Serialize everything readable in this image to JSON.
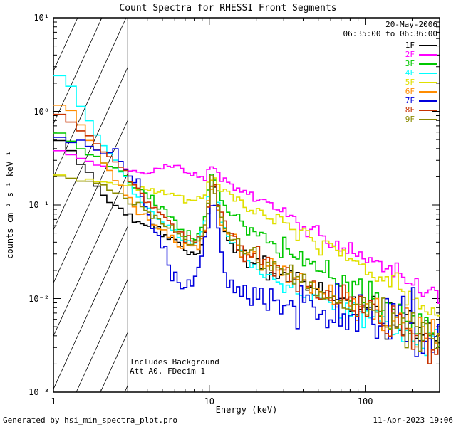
{
  "title": "Count Spectra for RHESSI Front Segments",
  "annotations": {
    "date": "20-May-2006",
    "time_range": "06:35:00 to 06:36:00",
    "note_line1": "Includes Background",
    "note_line2": "Att A0, FDecim 1"
  },
  "footer": {
    "generated_by": "Generated by hsi_min_spectra_plot.pro",
    "timestamp": "11-Apr-2023 19:06"
  },
  "chart_data": {
    "type": "line",
    "title": "Count Spectra for RHESSI Front Segments",
    "xlabel": "Energy (keV)",
    "ylabel": "counts cm⁻² s⁻¹ keV⁻¹",
    "xscale": "log",
    "yscale": "log",
    "xlim": [
      1,
      300
    ],
    "ylim": [
      0.001,
      10
    ],
    "x_ticks": [
      1,
      10,
      100
    ],
    "x_tick_labels": [
      "1",
      "10",
      "100"
    ],
    "y_ticks": [
      0.001,
      0.01,
      0.1,
      1,
      10
    ],
    "y_tick_labels": [
      "10⁻³",
      "10⁻²",
      "10⁻¹",
      "10⁰",
      "10¹"
    ],
    "grid": false,
    "legend_position": "upper right",
    "hatched_region": {
      "xmin": 1,
      "xmax": 3
    },
    "series": [
      {
        "name": "1F",
        "color": "#000000",
        "noise": 1.2,
        "points": [
          [
            1.05,
            0.48
          ],
          [
            1.25,
            0.44
          ],
          [
            1.45,
            0.3
          ],
          [
            1.7,
            0.22
          ],
          [
            2.0,
            0.13
          ],
          [
            2.4,
            0.1
          ],
          [
            2.8,
            0.085
          ],
          [
            3.3,
            0.07
          ],
          [
            4.0,
            0.06
          ],
          [
            5.0,
            0.05
          ],
          [
            6.0,
            0.04
          ],
          [
            7.0,
            0.032
          ],
          [
            8.5,
            0.03
          ],
          [
            9.5,
            0.05
          ],
          [
            10.5,
            0.2
          ],
          [
            11.5,
            0.1
          ],
          [
            13,
            0.045
          ],
          [
            16,
            0.028
          ],
          [
            20,
            0.024
          ],
          [
            30,
            0.017
          ],
          [
            50,
            0.012
          ],
          [
            70,
            0.0095
          ],
          [
            100,
            0.008
          ],
          [
            150,
            0.006
          ],
          [
            200,
            0.005
          ],
          [
            300,
            0.0038
          ]
        ]
      },
      {
        "name": "2F",
        "color": "#FF00FF",
        "noise": 0.7,
        "points": [
          [
            1.05,
            0.4
          ],
          [
            1.4,
            0.33
          ],
          [
            1.8,
            0.28
          ],
          [
            2.2,
            0.26
          ],
          [
            2.7,
            0.24
          ],
          [
            3.2,
            0.22
          ],
          [
            4.0,
            0.22
          ],
          [
            5.0,
            0.25
          ],
          [
            6.0,
            0.26
          ],
          [
            7.0,
            0.24
          ],
          [
            8.0,
            0.21
          ],
          [
            9.0,
            0.19
          ],
          [
            10.0,
            0.22
          ],
          [
            10.8,
            0.26
          ],
          [
            12,
            0.19
          ],
          [
            15,
            0.15
          ],
          [
            20,
            0.12
          ],
          [
            30,
            0.082
          ],
          [
            50,
            0.05
          ],
          [
            70,
            0.037
          ],
          [
            100,
            0.027
          ],
          [
            150,
            0.019
          ],
          [
            200,
            0.014
          ],
          [
            300,
            0.011
          ]
        ]
      },
      {
        "name": "3F",
        "color": "#00C800",
        "noise": 1.2,
        "points": [
          [
            1.05,
            0.62
          ],
          [
            1.3,
            0.5
          ],
          [
            1.6,
            0.38
          ],
          [
            2.0,
            0.3
          ],
          [
            2.5,
            0.24
          ],
          [
            3.0,
            0.19
          ],
          [
            3.5,
            0.15
          ],
          [
            4.0,
            0.12
          ],
          [
            5.0,
            0.09
          ],
          [
            6.0,
            0.068
          ],
          [
            7.0,
            0.052
          ],
          [
            8.0,
            0.046
          ],
          [
            9.0,
            0.052
          ],
          [
            10.5,
            0.22
          ],
          [
            12,
            0.1
          ],
          [
            15,
            0.068
          ],
          [
            20,
            0.05
          ],
          [
            30,
            0.034
          ],
          [
            50,
            0.021
          ],
          [
            70,
            0.015
          ],
          [
            100,
            0.011
          ],
          [
            150,
            0.0075
          ],
          [
            200,
            0.0055
          ],
          [
            300,
            0.0038
          ]
        ]
      },
      {
        "name": "4F",
        "color": "#00FFFF",
        "noise": 1.0,
        "points": [
          [
            1.05,
            2.3
          ],
          [
            1.2,
            2.4
          ],
          [
            1.35,
            1.6
          ],
          [
            1.55,
            1.0
          ],
          [
            1.8,
            0.65
          ],
          [
            2.1,
            0.42
          ],
          [
            2.45,
            0.3
          ],
          [
            2.85,
            0.2
          ],
          [
            3.3,
            0.13
          ],
          [
            3.9,
            0.095
          ],
          [
            4.6,
            0.075
          ],
          [
            5.5,
            0.058
          ],
          [
            6.6,
            0.047
          ],
          [
            8.0,
            0.04
          ],
          [
            9.3,
            0.06
          ],
          [
            10.5,
            0.2
          ],
          [
            11.5,
            0.09
          ],
          [
            13,
            0.05
          ],
          [
            16,
            0.03
          ],
          [
            20,
            0.022
          ],
          [
            30,
            0.014
          ],
          [
            50,
            0.0095
          ],
          [
            70,
            0.0078
          ],
          [
            100,
            0.0065
          ],
          [
            150,
            0.005
          ],
          [
            200,
            0.0042
          ],
          [
            300,
            0.0032
          ]
        ]
      },
      {
        "name": "5F",
        "color": "#E0E000",
        "noise": 0.8,
        "points": [
          [
            1.05,
            0.2
          ],
          [
            1.5,
            0.19
          ],
          [
            2.0,
            0.18
          ],
          [
            2.6,
            0.17
          ],
          [
            3.2,
            0.16
          ],
          [
            4.0,
            0.15
          ],
          [
            5.0,
            0.14
          ],
          [
            6.0,
            0.125
          ],
          [
            7.0,
            0.115
          ],
          [
            8.0,
            0.11
          ],
          [
            9.0,
            0.115
          ],
          [
            10.5,
            0.22
          ],
          [
            12,
            0.15
          ],
          [
            15,
            0.115
          ],
          [
            20,
            0.09
          ],
          [
            30,
            0.062
          ],
          [
            50,
            0.04
          ],
          [
            70,
            0.029
          ],
          [
            100,
            0.021
          ],
          [
            150,
            0.014
          ],
          [
            200,
            0.01
          ],
          [
            300,
            0.0065
          ]
        ]
      },
      {
        "name": "6F",
        "color": "#FF8C00",
        "noise": 1.1,
        "points": [
          [
            1.05,
            1.25
          ],
          [
            1.25,
            1.1
          ],
          [
            1.45,
            0.75
          ],
          [
            1.7,
            0.5
          ],
          [
            2.0,
            0.33
          ],
          [
            2.35,
            0.22
          ],
          [
            2.75,
            0.15
          ],
          [
            3.2,
            0.1
          ],
          [
            3.8,
            0.075
          ],
          [
            4.5,
            0.06
          ],
          [
            5.5,
            0.048
          ],
          [
            6.6,
            0.038
          ],
          [
            8.0,
            0.033
          ],
          [
            9.3,
            0.05
          ],
          [
            10.5,
            0.2
          ],
          [
            11.5,
            0.09
          ],
          [
            13,
            0.05
          ],
          [
            16,
            0.032
          ],
          [
            20,
            0.027
          ],
          [
            30,
            0.019
          ],
          [
            50,
            0.0125
          ],
          [
            70,
            0.0098
          ],
          [
            100,
            0.008
          ],
          [
            150,
            0.006
          ],
          [
            200,
            0.0048
          ],
          [
            300,
            0.0036
          ]
        ]
      },
      {
        "name": "7F",
        "color": "#0000DD",
        "noise": 2.0,
        "points": [
          [
            1.05,
            0.55
          ],
          [
            1.3,
            0.5
          ],
          [
            1.6,
            0.46
          ],
          [
            2.0,
            0.42
          ],
          [
            2.4,
            0.37
          ],
          [
            2.8,
            0.3
          ],
          [
            3.2,
            0.21
          ],
          [
            3.6,
            0.13
          ],
          [
            4.0,
            0.08
          ],
          [
            4.5,
            0.05
          ],
          [
            5.0,
            0.032
          ],
          [
            5.6,
            0.022
          ],
          [
            6.3,
            0.014
          ],
          [
            7.2,
            0.012
          ],
          [
            8.2,
            0.017
          ],
          [
            9.2,
            0.035
          ],
          [
            10.0,
            0.08
          ],
          [
            10.8,
            0.105
          ],
          [
            11.6,
            0.045
          ],
          [
            12.6,
            0.02
          ],
          [
            14,
            0.013
          ],
          [
            16,
            0.01
          ],
          [
            20,
            0.0095
          ],
          [
            30,
            0.0085
          ],
          [
            50,
            0.0075
          ],
          [
            70,
            0.0065
          ],
          [
            100,
            0.0058
          ],
          [
            150,
            0.005
          ],
          [
            200,
            0.0042
          ],
          [
            300,
            0.0032
          ]
        ]
      },
      {
        "name": "8F",
        "color": "#C83200",
        "noise": 1.2,
        "points": [
          [
            1.05,
            0.95
          ],
          [
            1.3,
            0.78
          ],
          [
            1.6,
            0.58
          ],
          [
            2.0,
            0.42
          ],
          [
            2.4,
            0.31
          ],
          [
            2.8,
            0.23
          ],
          [
            3.3,
            0.16
          ],
          [
            4.0,
            0.11
          ],
          [
            5.0,
            0.075
          ],
          [
            6.0,
            0.055
          ],
          [
            7.0,
            0.044
          ],
          [
            8.0,
            0.038
          ],
          [
            9.2,
            0.05
          ],
          [
            10.5,
            0.21
          ],
          [
            11.5,
            0.1
          ],
          [
            13,
            0.055
          ],
          [
            16,
            0.035
          ],
          [
            20,
            0.028
          ],
          [
            30,
            0.019
          ],
          [
            50,
            0.0125
          ],
          [
            70,
            0.0095
          ],
          [
            100,
            0.0075
          ],
          [
            150,
            0.0056
          ],
          [
            200,
            0.0045
          ],
          [
            300,
            0.0034
          ]
        ]
      },
      {
        "name": "9F",
        "color": "#8A8A00",
        "noise": 1.1,
        "points": [
          [
            1.05,
            0.21
          ],
          [
            1.4,
            0.19
          ],
          [
            1.8,
            0.17
          ],
          [
            2.2,
            0.15
          ],
          [
            2.7,
            0.13
          ],
          [
            3.2,
            0.11
          ],
          [
            3.8,
            0.09
          ],
          [
            4.5,
            0.072
          ],
          [
            5.5,
            0.058
          ],
          [
            6.6,
            0.047
          ],
          [
            8.0,
            0.04
          ],
          [
            9.2,
            0.05
          ],
          [
            10.5,
            0.19
          ],
          [
            11.5,
            0.09
          ],
          [
            13,
            0.05
          ],
          [
            16,
            0.033
          ],
          [
            20,
            0.027
          ],
          [
            30,
            0.019
          ],
          [
            50,
            0.0125
          ],
          [
            70,
            0.0095
          ],
          [
            100,
            0.0075
          ],
          [
            150,
            0.0057
          ],
          [
            200,
            0.0046
          ],
          [
            300,
            0.0035
          ]
        ]
      }
    ]
  }
}
